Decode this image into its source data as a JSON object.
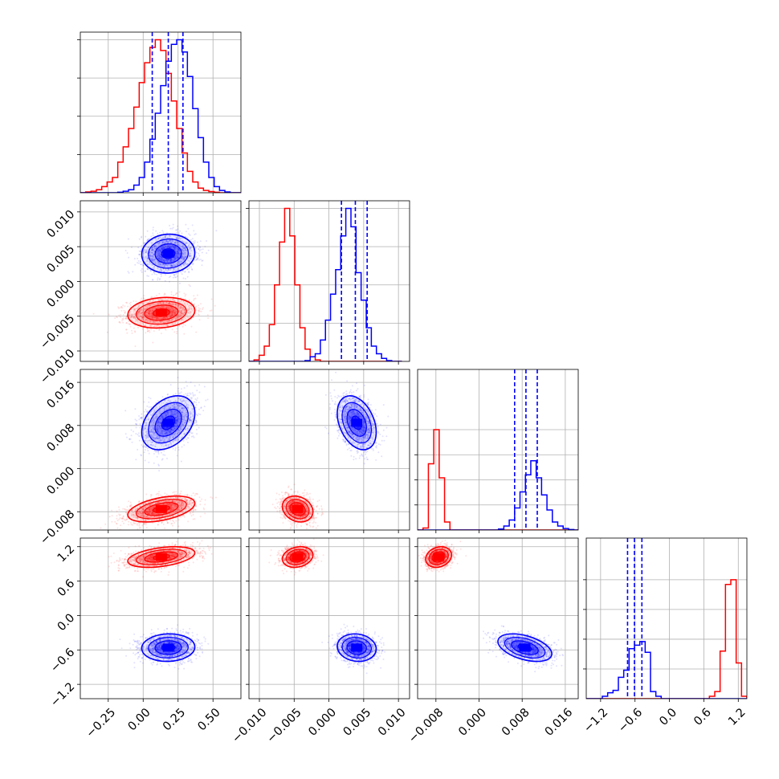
{
  "chart_data": {
    "type": "corner",
    "grid": true,
    "colors": {
      "series_a": "#ff0000",
      "series_b": "#0000ff"
    },
    "series": [
      {
        "color": "red",
        "mean": [
          0.13,
          -0.0045,
          -0.0075,
          1.02
        ],
        "sd": [
          0.12,
          0.0011,
          0.0012,
          0.09
        ],
        "corr": {
          "0-1": 0.15,
          "0-2": 0.45,
          "1-2": -0.2,
          "0-3": 0.4,
          "1-3": 0.2,
          "2-3": 0.2
        }
      },
      {
        "color": "blue",
        "mean": [
          0.18,
          0.004,
          0.0085,
          -0.56
        ],
        "sd": [
          0.095,
          0.0014,
          0.0025,
          0.12
        ],
        "corr": {
          "0-1": 0.05,
          "0-2": 0.35,
          "1-2": -0.35,
          "0-3": 0.05,
          "1-3": -0.1,
          "2-3": -0.45
        }
      }
    ],
    "quantiles": {
      "color": "blue",
      "p0": [
        0.065,
        0.0018,
        0.0066,
        -0.73
      ],
      "p1": [
        0.18,
        0.0038,
        0.0087,
        -0.61
      ],
      "p2": [
        0.285,
        0.0055,
        0.0108,
        -0.48
      ]
    },
    "axes": [
      {
        "range": [
          -0.45,
          0.7
        ],
        "ticks": [
          -0.25,
          0.0,
          0.25,
          0.5
        ],
        "tick_labels": [
          "−0.25",
          "0.00",
          "0.25",
          "0.50"
        ]
      },
      {
        "range": [
          -0.0115,
          0.0116
        ],
        "ticks": [
          -0.01,
          -0.005,
          0.0,
          0.005,
          0.01
        ],
        "tick_labels": [
          "−0.010",
          "−0.005",
          "0.000",
          "0.005",
          "0.010"
        ]
      },
      {
        "range": [
          -0.0114,
          0.0184
        ],
        "ticks": [
          -0.008,
          0.0,
          0.008,
          0.016
        ],
        "tick_labels": [
          "−0.008",
          "0.000",
          "0.008",
          "0.016"
        ]
      },
      {
        "range": [
          -1.45,
          1.35
        ],
        "ticks": [
          -1.2,
          -0.6,
          0.0,
          0.6,
          1.2
        ],
        "tick_labels": [
          "−1.2",
          "−0.6",
          "0.0",
          "0.6",
          "1.2"
        ]
      }
    ],
    "histograms": [
      {
        "diag": 0,
        "edges": [
          -0.45,
          -0.4117,
          -0.3733,
          -0.335,
          -0.2967,
          -0.2583,
          -0.22,
          -0.1817,
          -0.1433,
          -0.105,
          -0.0667,
          -0.0283,
          0.01,
          0.0483,
          0.0867,
          0.125,
          0.1633,
          0.2017,
          0.24,
          0.2783,
          0.3167,
          0.355,
          0.3933,
          0.4317,
          0.47,
          0.5083,
          0.5467,
          0.585,
          0.6233,
          0.6617,
          0.7
        ],
        "red": [
          0.0,
          0.005,
          0.01,
          0.02,
          0.04,
          0.07,
          0.1,
          0.2,
          0.3,
          0.42,
          0.56,
          0.72,
          0.85,
          0.95,
          1.0,
          0.93,
          0.78,
          0.6,
          0.42,
          0.26,
          0.14,
          0.07,
          0.03,
          0.015,
          0.008,
          0.003,
          0.0,
          0.0,
          0.0,
          0.0
        ],
        "blue": [
          0.0,
          0.0,
          0.0,
          0.0,
          0.0,
          0.0,
          0.0,
          0.003,
          0.01,
          0.02,
          0.05,
          0.1,
          0.2,
          0.35,
          0.52,
          0.7,
          0.86,
          0.97,
          1.0,
          0.92,
          0.76,
          0.55,
          0.36,
          0.2,
          0.1,
          0.04,
          0.015,
          0.005,
          0.0,
          0.0
        ]
      },
      {
        "diag": 1,
        "edges": [
          -0.0115,
          -0.01077,
          -0.01003,
          -0.0093,
          -0.00857,
          -0.00783,
          -0.0071,
          -0.00637,
          -0.00563,
          -0.0049,
          -0.00417,
          -0.00343,
          -0.0027,
          -0.00197,
          -0.00123,
          -0.0005,
          0.00023,
          0.00097,
          0.0017,
          0.00243,
          0.00317,
          0.0039,
          0.00463,
          0.00537,
          0.0061,
          0.00683,
          0.00757,
          0.0083,
          0.00903,
          0.00977,
          0.0105
        ],
        "red": [
          0.0,
          0.01,
          0.04,
          0.1,
          0.24,
          0.5,
          0.78,
          1.0,
          0.82,
          0.5,
          0.22,
          0.08,
          0.03,
          0.01,
          0.0,
          0.0,
          0.0,
          0.0,
          0.0,
          0.0,
          0.0,
          0.0,
          0.0,
          0.0,
          0.0,
          0.0,
          0.0,
          0.0,
          0.0,
          0.0
        ],
        "blue": [
          0.0,
          0.0,
          0.0,
          0.0,
          0.0,
          0.0,
          0.0,
          0.0,
          0.0,
          0.0,
          0.0,
          0.005,
          0.03,
          0.05,
          0.14,
          0.27,
          0.44,
          0.6,
          0.82,
          1.0,
          0.88,
          0.58,
          0.4,
          0.22,
          0.1,
          0.05,
          0.02,
          0.005,
          0.0,
          0.0
        ]
      },
      {
        "diag": 2,
        "edges": [
          -0.0114,
          -0.0104,
          -0.0094,
          -0.0084,
          -0.0074,
          -0.0064,
          -0.0054,
          -0.0044,
          -0.0034,
          -0.0024,
          -0.0014,
          -0.0004,
          0.0006,
          0.0016,
          0.0026,
          0.0036,
          0.0046,
          0.0056,
          0.0066,
          0.0076,
          0.0086,
          0.0096,
          0.0106,
          0.0116,
          0.0126,
          0.0136,
          0.0146,
          0.0156,
          0.0166,
          0.0176,
          0.0186
        ],
        "red": [
          0.0,
          0.02,
          0.66,
          1.0,
          0.52,
          0.08,
          0.0,
          0.0,
          0.0,
          0.0,
          0.0,
          0.0,
          0.0,
          0.0,
          0.0,
          0.0,
          0.0,
          0.0,
          0.0,
          0.0,
          0.0,
          0.0,
          0.0,
          0.0,
          0.0,
          0.0,
          0.0,
          0.0,
          0.0,
          0.0
        ],
        "blue": [
          0.0,
          0.0,
          0.0,
          0.0,
          0.0,
          0.0,
          0.0,
          0.0,
          0.0,
          0.0,
          0.0,
          0.0,
          0.0,
          0.0,
          0.0,
          0.01,
          0.04,
          0.1,
          0.22,
          0.38,
          0.55,
          0.69,
          0.52,
          0.35,
          0.2,
          0.08,
          0.04,
          0.015,
          0.005,
          0.0
        ]
      },
      {
        "diag": 3,
        "edges": [
          -1.45,
          -1.3567,
          -1.2633,
          -1.17,
          -1.0767,
          -0.9833,
          -0.89,
          -0.7967,
          -0.7033,
          -0.61,
          -0.5167,
          -0.4233,
          -0.33,
          -0.2367,
          -0.1433,
          -0.05,
          0.0433,
          0.1367,
          0.23,
          0.3233,
          0.4167,
          0.51,
          0.6033,
          0.6967,
          0.79,
          0.8833,
          0.9767,
          1.07,
          1.1633,
          1.2567,
          1.35
        ],
        "red": [
          0.0,
          0.0,
          0.0,
          0.0,
          0.0,
          0.0,
          0.0,
          0.0,
          0.0,
          0.0,
          0.0,
          0.0,
          0.0,
          0.0,
          0.0,
          0.0,
          0.0,
          0.0,
          0.0,
          0.0,
          0.0,
          0.0,
          0.0,
          0.02,
          0.06,
          0.4,
          0.96,
          1.0,
          0.3,
          0.02
        ],
        "blue": [
          0.0,
          0.0,
          0.0,
          0.02,
          0.05,
          0.07,
          0.18,
          0.24,
          0.42,
          0.45,
          0.48,
          0.39,
          0.06,
          0.02,
          0.0,
          0.0,
          0.0,
          0.0,
          0.0,
          0.0,
          0.0,
          0.0,
          0.0,
          0.0,
          0.0,
          0.0,
          0.0,
          0.0,
          0.0,
          0.0
        ]
      }
    ],
    "ylims": [
      1.05,
      1.05,
      1.6,
      1.35
    ]
  }
}
